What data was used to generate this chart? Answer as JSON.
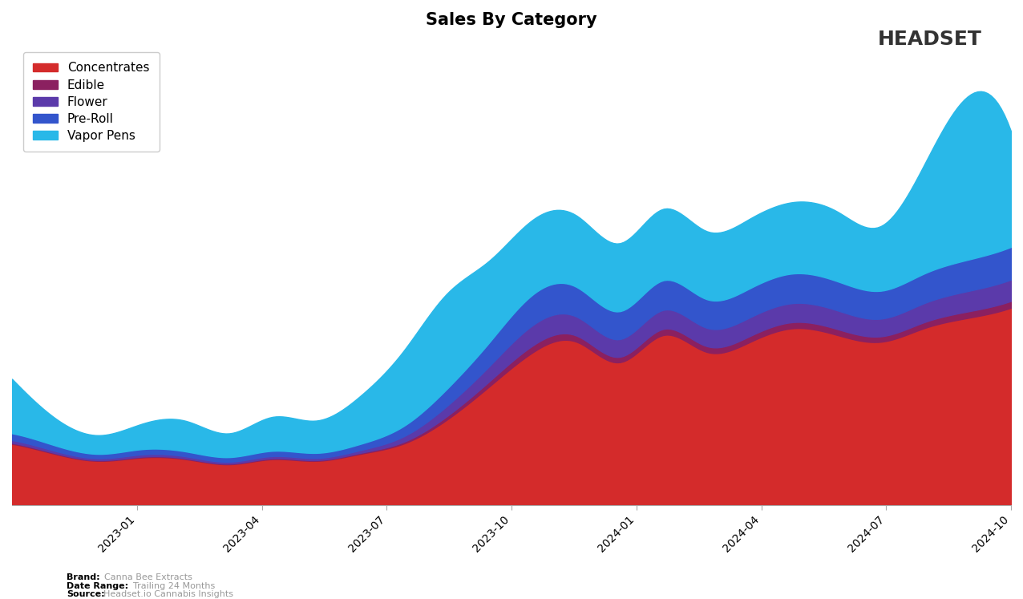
{
  "title": "Sales By Category",
  "categories": [
    "Concentrates",
    "Edible",
    "Flower",
    "Pre-Roll",
    "Vapor Pens"
  ],
  "colors": {
    "Concentrates": "#d42b2b",
    "Edible": "#8b2060",
    "Flower": "#5b3aaa",
    "Pre-Roll": "#3355cc",
    "Vapor Pens": "#29b8e8"
  },
  "x_labels": [
    "2023-01",
    "2023-04",
    "2023-07",
    "2023-10",
    "2024-01",
    "2024-04",
    "2024-07",
    "2024-10"
  ],
  "background_color": "#ffffff",
  "title_fontsize": 15,
  "legend_fontsize": 11,
  "tick_fontsize": 10,
  "brand_text": "Canna Bee Extracts",
  "date_range_text": "Trailing 24 Months",
  "source_text": "Headset.io Cannabis Insights",
  "concentrates": [
    1800,
    1500,
    1300,
    1400,
    1350,
    1200,
    1350,
    1300,
    1500,
    1800,
    2500,
    3500,
    4500,
    4800,
    4200,
    5000,
    4500,
    4800,
    5200,
    5000,
    4800,
    5200,
    5500,
    5800
  ],
  "edible": [
    30,
    25,
    20,
    25,
    22,
    20,
    25,
    22,
    30,
    50,
    100,
    150,
    200,
    180,
    160,
    180,
    170,
    175,
    180,
    175,
    160,
    175,
    190,
    200
  ],
  "flower": [
    80,
    65,
    55,
    65,
    60,
    55,
    65,
    62,
    80,
    160,
    300,
    450,
    600,
    560,
    520,
    560,
    540,
    550,
    560,
    550,
    520,
    560,
    600,
    630
  ],
  "preroll": [
    200,
    160,
    130,
    155,
    145,
    135,
    155,
    150,
    180,
    300,
    500,
    700,
    900,
    870,
    820,
    870,
    840,
    855,
    870,
    855,
    820,
    870,
    920,
    960
  ],
  "vaporpens": [
    1600,
    800,
    550,
    750,
    900,
    700,
    1000,
    950,
    1400,
    2200,
    2800,
    2400,
    2200,
    2100,
    2000,
    2100,
    2000,
    2050,
    2100,
    2050,
    1900,
    3200,
    4800,
    3400
  ]
}
